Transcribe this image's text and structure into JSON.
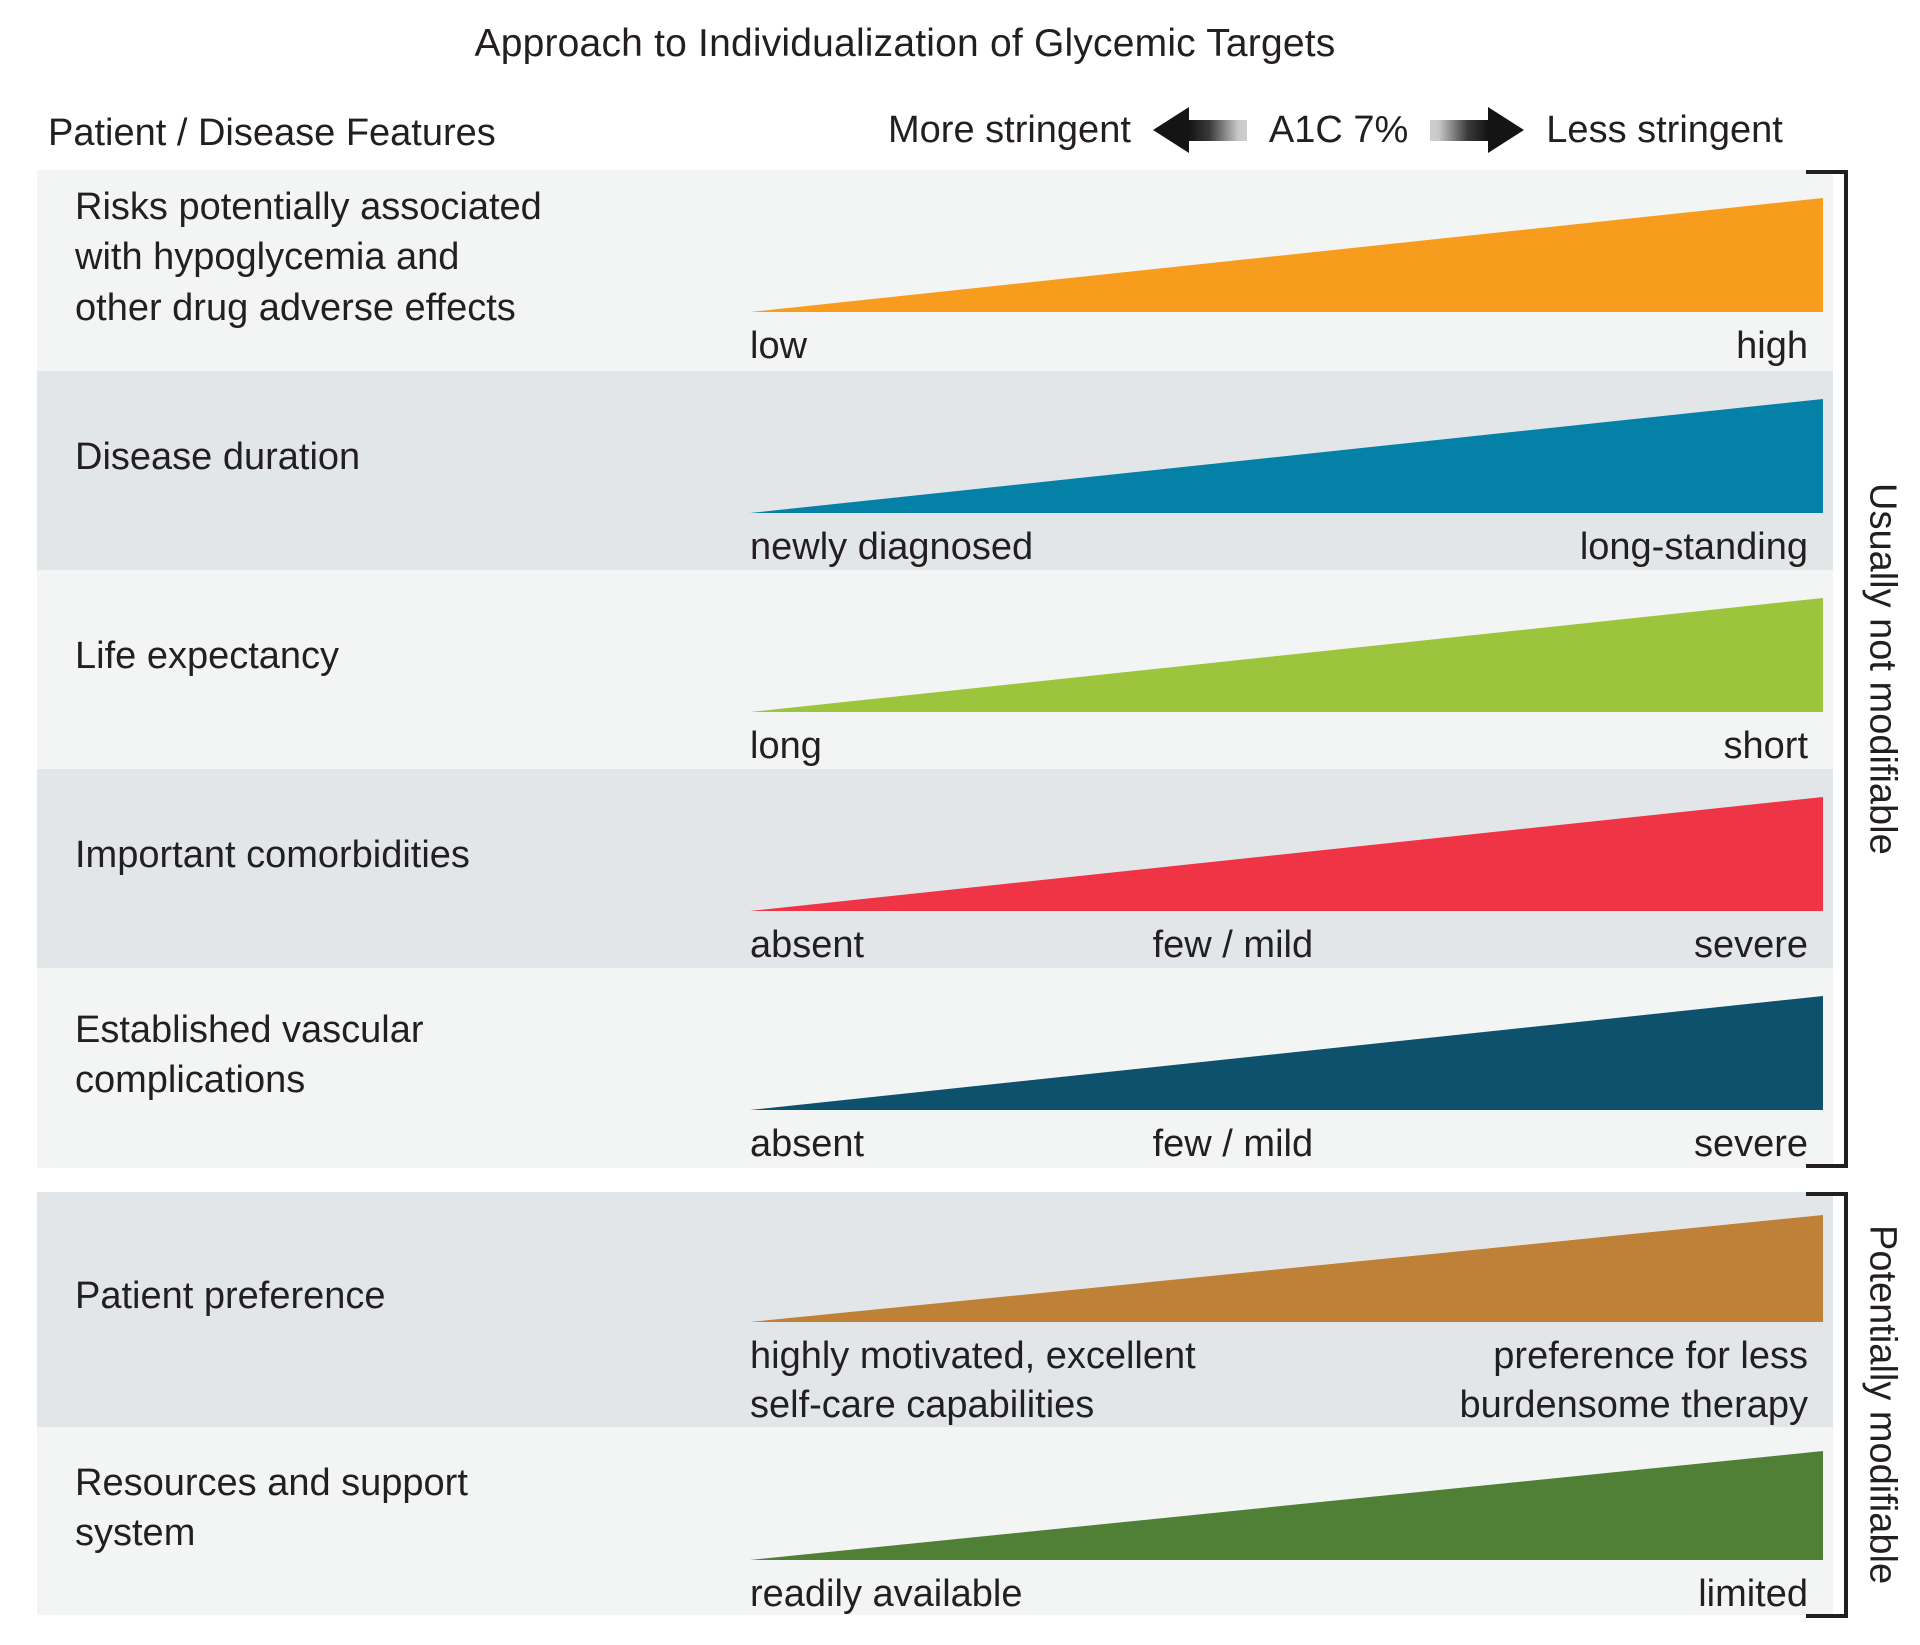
{
  "title": "Approach to Individualization of Glycemic Targets",
  "header": {
    "left_label": "Patient / Disease Features",
    "more_stringent": "More stringent",
    "center_label": "A1C 7%",
    "less_stringent": "Less stringent"
  },
  "colors": {
    "row_light": "#f3f4f4",
    "row_dark": "#e3e6e8",
    "text": "#231f20",
    "arrow_black": "#141414"
  },
  "groups": [
    {
      "label": "Usually not modifiable"
    },
    {
      "label": "Potentially modifiable"
    }
  ],
  "rows": [
    {
      "feature": "Risks potentially associated\nwith hypoglycemia and\nother drug adverse effects",
      "color": "#f89c1e",
      "labels": {
        "left": "low",
        "mid": "",
        "right": "high"
      }
    },
    {
      "feature": "Disease duration",
      "color": "#0581a7",
      "labels": {
        "left": "newly diagnosed",
        "mid": "",
        "right": "long-standing"
      }
    },
    {
      "feature": "Life expectancy",
      "color": "#9cc43c",
      "labels": {
        "left": "long",
        "mid": "",
        "right": "short"
      }
    },
    {
      "feature": "Important comorbidities",
      "color": "#ee3445",
      "labels": {
        "left": "absent",
        "mid": "few / mild",
        "right": "severe"
      }
    },
    {
      "feature": "Established vascular\ncomplications",
      "color": "#0d516c",
      "labels": {
        "left": "absent",
        "mid": "few / mild",
        "right": "severe"
      }
    },
    {
      "feature": "Patient preference",
      "color": "#bf8038",
      "labels": {
        "left": "highly motivated, excellent\nself-care capabilities",
        "mid": "",
        "right": "preference for less\nburdensome therapy"
      }
    },
    {
      "feature": "Resources and support\nsystem",
      "color": "#4f8036",
      "labels": {
        "left": "readily available",
        "mid": "",
        "right": "limited"
      }
    }
  ]
}
